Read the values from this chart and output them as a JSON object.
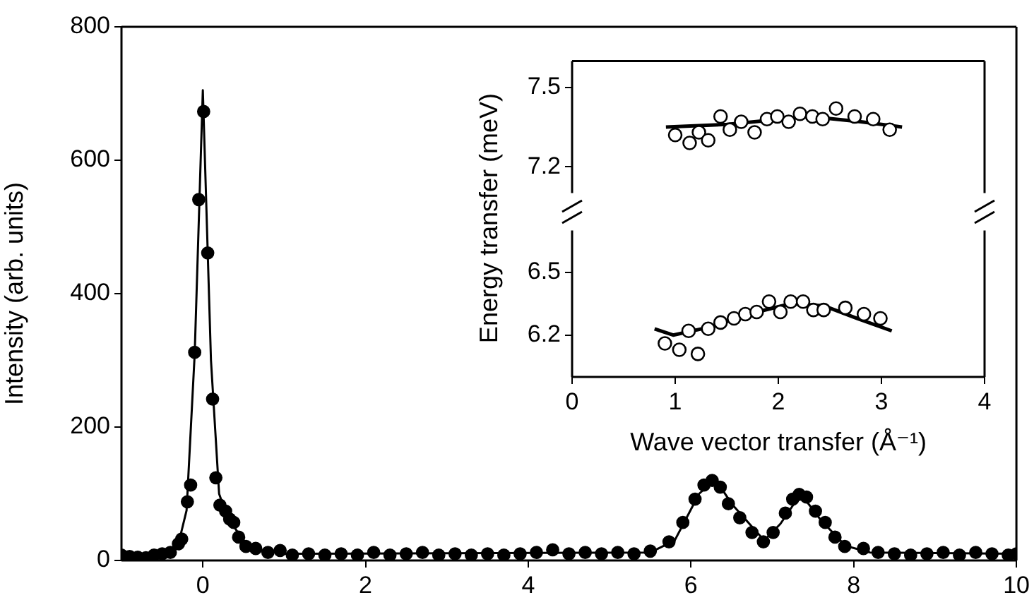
{
  "chart_data": [
    {
      "type": "scatter",
      "ylabel": "Intensity (arb. units)",
      "xlim": [
        -1,
        10
      ],
      "ylim": [
        0,
        800
      ],
      "xticks": [
        0,
        2,
        4,
        6,
        8,
        10
      ],
      "yticks": [
        0,
        200,
        400,
        600,
        800
      ],
      "series": [
        {
          "marker": "circle",
          "color": "#000000",
          "x": [
            -1,
            -0.9,
            -0.8,
            -0.7,
            -0.6,
            -0.5,
            -0.4,
            -0.3,
            -0.26,
            -0.19,
            -0.15,
            -0.1,
            -0.05,
            0.01,
            0.06,
            0.12,
            0.16,
            0.21,
            0.28,
            0.33,
            0.38,
            0.44,
            0.53,
            0.65,
            0.8,
            0.95,
            1.1,
            1.3,
            1.5,
            1.7,
            1.9,
            2.1,
            2.3,
            2.5,
            2.7,
            2.9,
            3.1,
            3.3,
            3.5,
            3.7,
            3.9,
            4.1,
            4.3,
            4.5,
            4.7,
            4.9,
            5.1,
            5.3,
            5.5,
            5.73,
            5.9,
            6.05,
            6.16,
            6.26,
            6.36,
            6.46,
            6.6,
            6.75,
            6.89,
            7.01,
            7.16,
            7.25,
            7.33,
            7.42,
            7.53,
            7.65,
            7.77,
            7.89,
            8.12,
            8.3,
            8.5,
            8.7,
            8.9,
            9.1,
            9.3,
            9.5,
            9.7,
            9.9,
            10
          ],
          "values": [
            8,
            6,
            5,
            4,
            8,
            10,
            12,
            25,
            32,
            88,
            113,
            312,
            541,
            673,
            461,
            242,
            124,
            83,
            74,
            62,
            57,
            35,
            21,
            18,
            12,
            15,
            8,
            10,
            8,
            10,
            8,
            12,
            8,
            10,
            12,
            8,
            10,
            8,
            10,
            8,
            10,
            12,
            16,
            10,
            12,
            10,
            12,
            10,
            14,
            28,
            57,
            92,
            113,
            120,
            110,
            85,
            64,
            42,
            28,
            42,
            71,
            92,
            99,
            95,
            74,
            57,
            35,
            21,
            18,
            12,
            10,
            8,
            10,
            12,
            8,
            12,
            10,
            8,
            10
          ]
        },
        {
          "type": "line",
          "marker": "none",
          "color": "#000000",
          "x": [
            -1,
            -0.4,
            -0.3,
            -0.2,
            -0.1,
            0,
            0.1,
            0.2,
            0.3,
            0.5,
            0.7,
            1,
            5.5,
            5.8,
            6.1,
            6.3,
            6.5,
            6.9,
            7.1,
            7.35,
            7.6,
            7.9,
            8.2,
            10
          ],
          "values": [
            8,
            12,
            25,
            75,
            310,
            705,
            300,
            100,
            65,
            30,
            15,
            10,
            12,
            30,
            100,
            122,
            85,
            30,
            55,
            100,
            60,
            22,
            12,
            10
          ]
        }
      ]
    },
    {
      "type": "scatter",
      "ylabel": "Energy transfer (meV)",
      "xlim": [
        0,
        4
      ],
      "ylim": [
        7.1,
        7.6
      ],
      "xticks": [
        0,
        1,
        2,
        3,
        4
      ],
      "yticks": [
        7.2,
        7.5
      ],
      "tick_labels": "y",
      "series": [
        {
          "marker": "circle",
          "color": "#000000",
          "x": [
            1.0,
            1.14,
            1.23,
            1.32,
            1.44,
            1.53,
            1.64,
            1.77,
            1.89,
            1.99,
            2.1,
            2.21,
            2.33,
            2.43,
            2.56,
            2.74,
            2.92,
            3.08
          ],
          "values": [
            7.32,
            7.29,
            7.33,
            7.3,
            7.39,
            7.34,
            7.37,
            7.33,
            7.38,
            7.39,
            7.37,
            7.4,
            7.39,
            7.38,
            7.42,
            7.39,
            7.38,
            7.34
          ]
        },
        {
          "type": "line",
          "marker": "none",
          "color": "#000000",
          "x": [
            0.91,
            1.5,
            2.3,
            2.8,
            3.2
          ],
          "values": [
            7.35,
            7.36,
            7.39,
            7.37,
            7.35
          ]
        }
      ]
    },
    {
      "type": "scatter",
      "xlabel": "Wave vector transfer (Å⁻¹)",
      "xlim": [
        0,
        4
      ],
      "ylim": [
        6.0,
        6.7
      ],
      "xticks": [
        0,
        1,
        2,
        3,
        4
      ],
      "yticks": [
        6.2,
        6.5
      ],
      "series": [
        {
          "marker": "circle",
          "color": "#000000",
          "x": [
            0.9,
            1.04,
            1.22,
            1.13,
            1.32,
            1.44,
            1.57,
            1.68,
            1.79,
            1.91,
            2.02,
            2.12,
            2.24,
            2.34,
            2.44,
            2.65,
            2.83,
            2.99
          ],
          "values": [
            6.16,
            6.13,
            6.11,
            6.22,
            6.23,
            6.26,
            6.28,
            6.3,
            6.31,
            6.36,
            6.31,
            6.36,
            6.36,
            6.32,
            6.32,
            6.33,
            6.3,
            6.28
          ]
        },
        {
          "type": "line",
          "marker": "none",
          "color": "#000000",
          "x": [
            0.8,
            0.98,
            1.35,
            1.71,
            2.12,
            2.44,
            2.76,
            3.1
          ],
          "values": [
            6.23,
            6.2,
            6.24,
            6.3,
            6.35,
            6.34,
            6.28,
            6.22
          ]
        }
      ]
    }
  ]
}
